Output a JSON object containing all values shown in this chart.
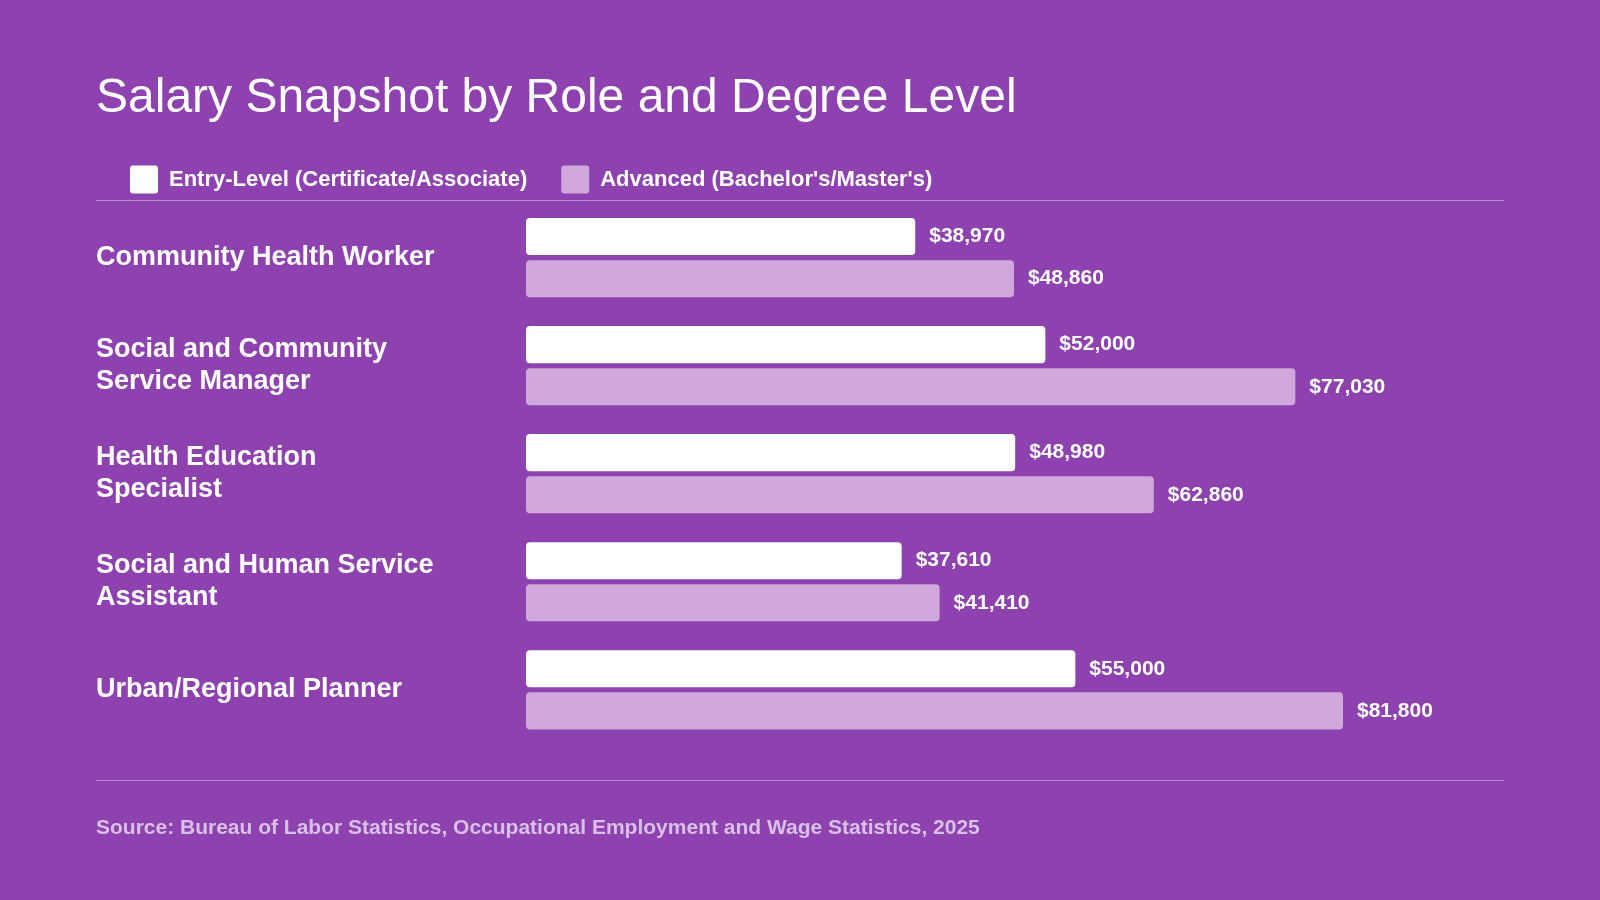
{
  "chart_data": {
    "type": "bar",
    "orientation": "horizontal",
    "title": "Salary Snapshot by Role and Degree Level",
    "categories": [
      "Community Health Worker",
      "Social and Community Service Manager",
      "Health Education Specialist",
      "Social and Human Service Assistant",
      "Urban/Regional Planner"
    ],
    "series": [
      {
        "name": "Entry-Level (Certificate/Associate)",
        "color": "#ffffff",
        "values": [
          38970,
          52000,
          48980,
          37610,
          55000
        ],
        "value_labels": [
          "$38,970",
          "$52,000",
          "$48,980",
          "$37,610",
          "$55,000"
        ]
      },
      {
        "name": "Advanced (Bachelor's/Master's)",
        "color": "#d0a8dc",
        "values": [
          48860,
          77030,
          62860,
          41410,
          81800
        ],
        "value_labels": [
          "$48,860",
          "$77,030",
          "$62,860",
          "$41,410",
          "$81,800"
        ]
      }
    ],
    "legend": "top left",
    "annotations": [
      "Source: Bureau of Labor Statistics, Occupational Employment and Wage Statistics, 2025"
    ]
  }
}
